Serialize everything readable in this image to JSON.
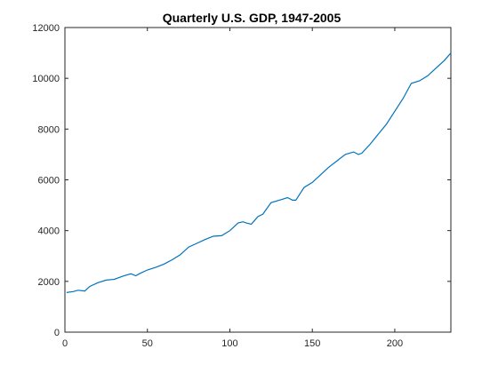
{
  "chart_data": {
    "type": "line",
    "title": "Quarterly U.S. GDP, 1947-2005",
    "xlabel": "",
    "ylabel": "",
    "xlim": [
      0,
      234
    ],
    "ylim": [
      0,
      12000
    ],
    "xticks": [
      0,
      50,
      100,
      150,
      200
    ],
    "yticks": [
      0,
      2000,
      4000,
      6000,
      8000,
      10000,
      12000
    ],
    "grid": false,
    "legend": "none",
    "colors": {
      "line": "#0072BD",
      "axes": "#262626"
    },
    "series": [
      {
        "x": [
          1,
          5,
          8,
          12,
          15,
          20,
          25,
          30,
          35,
          40,
          43,
          45,
          50,
          55,
          60,
          65,
          70,
          75,
          80,
          85,
          90,
          95,
          100,
          105,
          108,
          110,
          113,
          115,
          117,
          120,
          125,
          130,
          135,
          138,
          140,
          145,
          150,
          155,
          160,
          165,
          170,
          175,
          178,
          180,
          185,
          190,
          195,
          200,
          205,
          210,
          215,
          220,
          225,
          230,
          234
        ],
        "y": [
          1560,
          1600,
          1650,
          1620,
          1800,
          1950,
          2050,
          2080,
          2200,
          2300,
          2220,
          2300,
          2450,
          2550,
          2680,
          2850,
          3050,
          3350,
          3500,
          3650,
          3780,
          3800,
          4000,
          4300,
          4350,
          4300,
          4250,
          4400,
          4550,
          4650,
          5100,
          5200,
          5300,
          5200,
          5200,
          5700,
          5900,
          6200,
          6500,
          6750,
          7000,
          7100,
          7000,
          7050,
          7400,
          7800,
          8200,
          8700,
          9200,
          9800,
          9900,
          10100,
          10400,
          10700,
          11000
        ]
      }
    ]
  }
}
